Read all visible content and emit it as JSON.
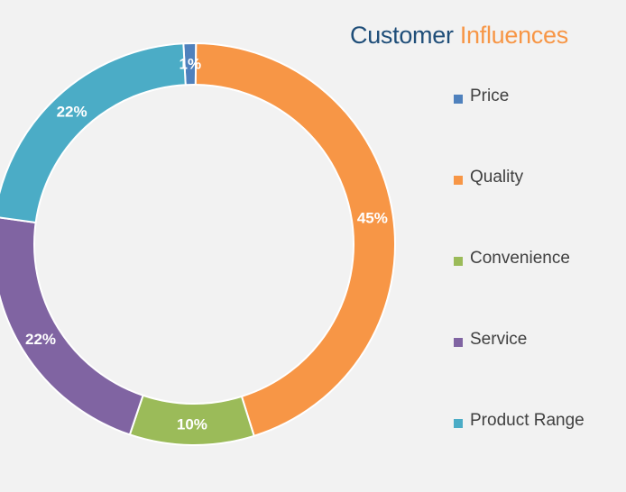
{
  "chart_data": {
    "type": "pie",
    "title": "Customer Influences",
    "title_parts": [
      "Customer",
      "Influences"
    ],
    "categories": [
      "Price",
      "Quality",
      "Convenience",
      "Service",
      "Product Range"
    ],
    "values": [
      1,
      45,
      10,
      22,
      22
    ],
    "data_labels": [
      "1%",
      "45%",
      "10%",
      "22%",
      "22%"
    ],
    "colors": [
      "#4f81bd",
      "#f79646",
      "#9bbb59",
      "#8064a2",
      "#4bacc6"
    ],
    "style": "donut",
    "legend_position": "right"
  }
}
